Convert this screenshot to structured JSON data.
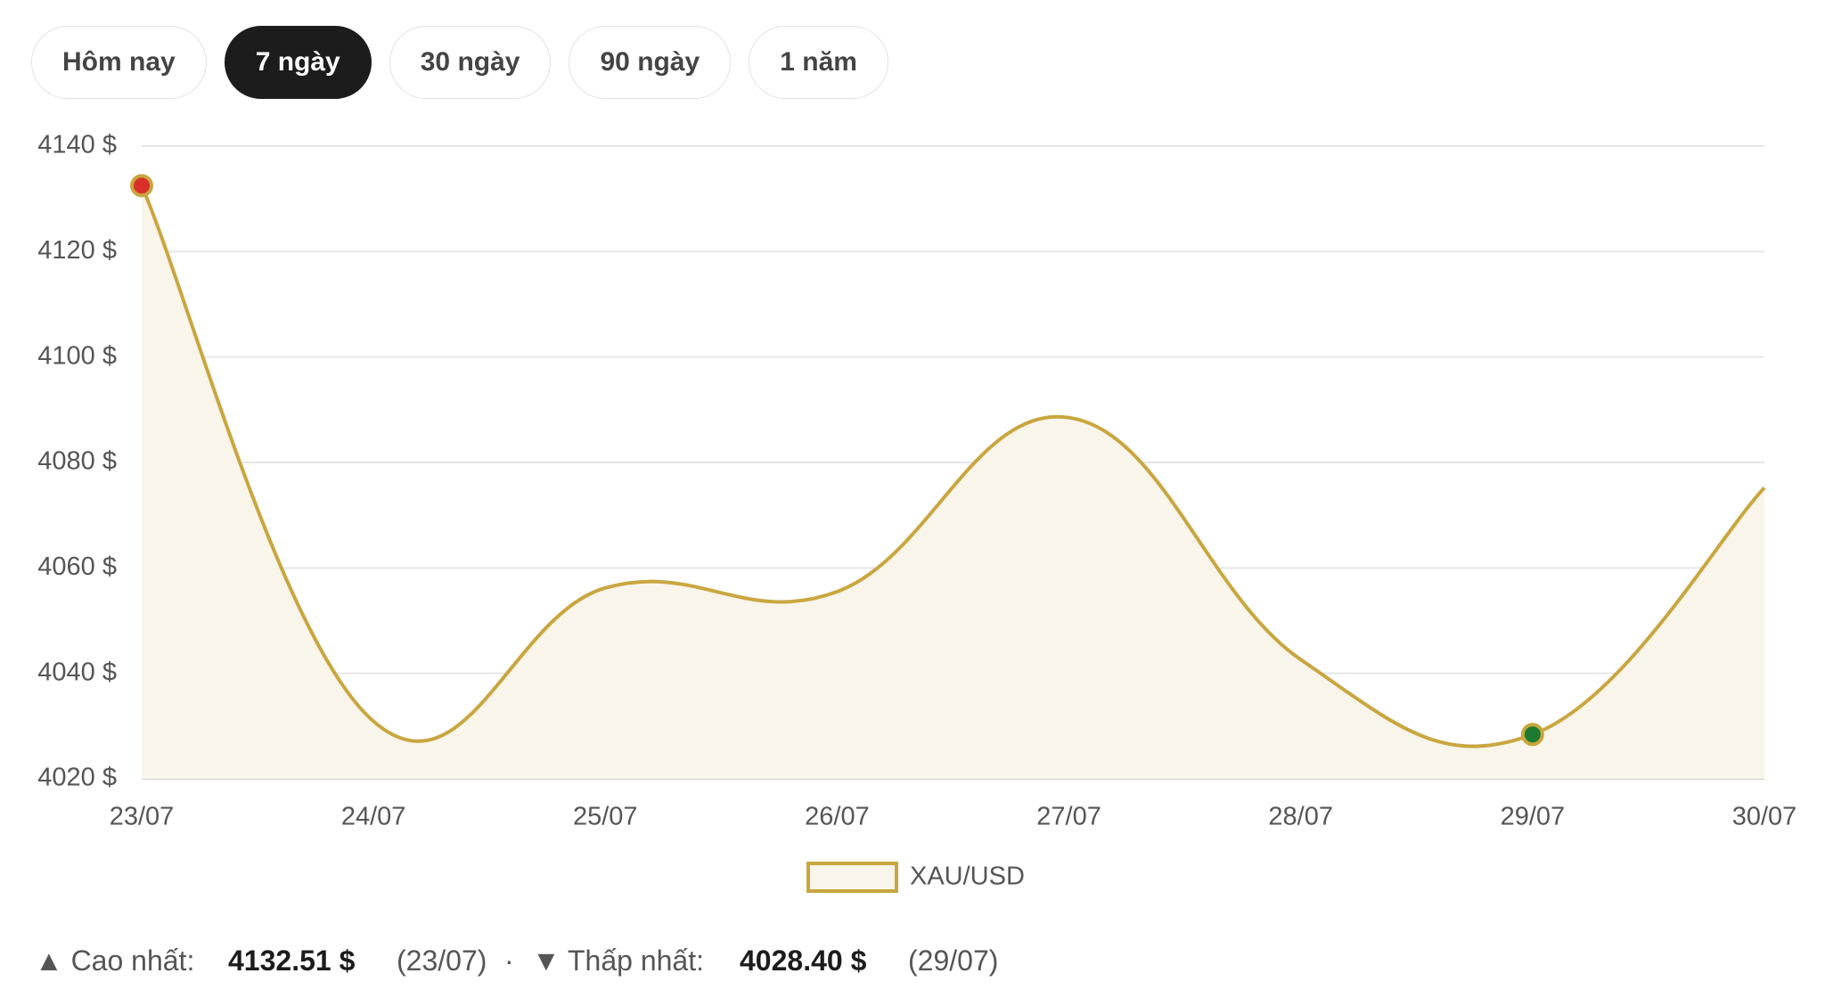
{
  "tabs": [
    "Hôm nay",
    "7 ngày",
    "30 ngày",
    "90 ngày",
    "1 năm"
  ],
  "active_tab": 1,
  "chart_data": {
    "type": "line",
    "categories": [
      "23/07",
      "24/07",
      "25/07",
      "26/07",
      "27/07",
      "28/07",
      "29/07",
      "30/07"
    ],
    "series": [
      {
        "name": "XAU/USD",
        "color": "#c9a63f",
        "fill": "#f9f5ea",
        "values": [
          4132.51,
          4030.9,
          4056.2,
          4055.5,
          4088.5,
          4042.6,
          4028.4,
          4075.2
        ]
      }
    ],
    "ylim": [
      4020,
      4140
    ],
    "yticks": [
      {
        "value": 4020,
        "label": "4020 $"
      },
      {
        "value": 4040,
        "label": "4040 $"
      },
      {
        "value": 4060,
        "label": "4060 $"
      },
      {
        "value": 4080,
        "label": "4080 $"
      },
      {
        "value": 4100,
        "label": "4100 $"
      },
      {
        "value": 4120,
        "label": "4120 $"
      },
      {
        "value": 4140,
        "label": "4140 $"
      }
    ],
    "grid": true,
    "high_color": "#d9302a",
    "low_color": "#1e7a30"
  },
  "footer": {
    "high_label": "▲ Cao nhất:",
    "high_value": "4132.51 $",
    "high_date": "(23/07)",
    "separator": "·",
    "low_label": "▼ Thấp nhất:",
    "low_value": "4028.40 $",
    "low_date": "(29/07)"
  }
}
